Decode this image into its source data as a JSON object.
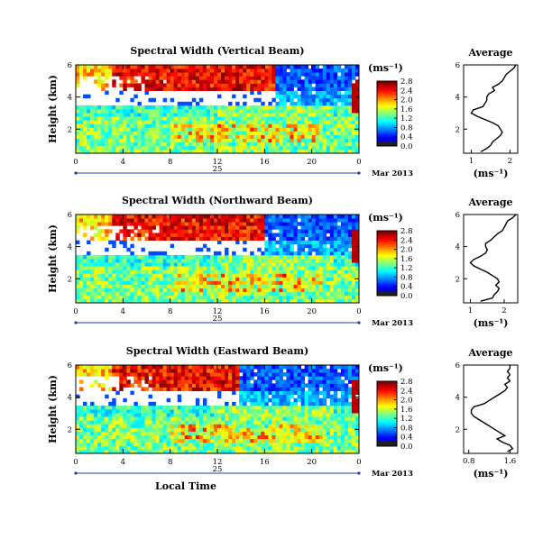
{
  "chart_data": [
    {
      "type": "heatmap",
      "title": "Spectral Width (Vertical Beam)",
      "ylabel": "Height (km)",
      "xticks": [
        "0",
        "4",
        "8",
        "12",
        "16",
        "20",
        "0"
      ],
      "yticks": [
        "2",
        "4",
        "6"
      ],
      "date_day": "25",
      "date_label": "Mar 2013",
      "colorbar_unit": "(ms⁻¹)",
      "colorbar_ticks": [
        "0.0",
        "0.4",
        "0.8",
        "1.2",
        "1.6",
        "2.0",
        "2.4",
        "2.8"
      ],
      "colorbar_range": [
        0,
        2.8
      ],
      "xlim": [
        0,
        24
      ],
      "ylim": [
        0.5,
        6
      ],
      "upper_level_km": 4.5,
      "upper_level_end_h": 17,
      "average": {
        "title": "Average",
        "xlabel": "(ms⁻¹)",
        "xticks": [
          "1",
          "2"
        ],
        "xticks_v": [
          1,
          2
        ],
        "xlim": [
          0.8,
          2.2
        ],
        "yticks": [
          "2",
          "4",
          "6"
        ],
        "ylim": [
          0.5,
          6
        ],
        "height": [
          0.6,
          0.8,
          1.0,
          1.2,
          1.4,
          1.6,
          1.8,
          2.0,
          2.2,
          2.4,
          2.6,
          2.8,
          3.0,
          3.2,
          3.4,
          3.6,
          3.8,
          4.0,
          4.2,
          4.4,
          4.6,
          4.8,
          5.0,
          5.2,
          5.4,
          5.6,
          5.8,
          6.0
        ],
        "value": [
          1.25,
          1.4,
          1.5,
          1.55,
          1.65,
          1.75,
          1.8,
          1.75,
          1.7,
          1.55,
          1.35,
          1.15,
          1.0,
          1.05,
          1.3,
          1.35,
          1.4,
          1.4,
          1.45,
          1.6,
          1.55,
          1.7,
          1.8,
          1.85,
          1.9,
          2.0,
          2.1,
          2.15
        ]
      }
    },
    {
      "type": "heatmap",
      "title": "Spectral Width (Northward Beam)",
      "ylabel": "Height (km)",
      "xticks": [
        "0",
        "4",
        "8",
        "12",
        "16",
        "20",
        "0"
      ],
      "yticks": [
        "2",
        "4",
        "6"
      ],
      "date_day": "25",
      "date_label": "Mar 2013",
      "colorbar_unit": "(ms⁻¹)",
      "colorbar_ticks": [
        "0.0",
        "0.4",
        "0.8",
        "1.2",
        "1.6",
        "2.0",
        "2.4",
        "2.8"
      ],
      "colorbar_range": [
        0,
        2.8
      ],
      "xlim": [
        0,
        24
      ],
      "ylim": [
        0.5,
        6
      ],
      "upper_level_km": 4.5,
      "upper_level_end_h": 16,
      "average": {
        "title": "Average",
        "xlabel": "(ms⁻¹)",
        "xticks": [
          "1",
          "2"
        ],
        "xticks_v": [
          1,
          2
        ],
        "xlim": [
          0.8,
          2.4
        ],
        "yticks": [
          "2",
          "4",
          "6"
        ],
        "ylim": [
          0.5,
          6
        ],
        "height": [
          0.6,
          0.8,
          1.0,
          1.2,
          1.4,
          1.6,
          1.8,
          2.0,
          2.2,
          2.4,
          2.6,
          2.8,
          3.0,
          3.2,
          3.4,
          3.6,
          3.8,
          4.0,
          4.2,
          4.4,
          4.6,
          4.8,
          5.0,
          5.2,
          5.4,
          5.6,
          5.8,
          6.0
        ],
        "value": [
          1.3,
          1.65,
          1.7,
          1.8,
          1.85,
          1.75,
          1.85,
          1.8,
          1.65,
          1.5,
          1.3,
          1.1,
          1.0,
          1.1,
          1.3,
          1.45,
          1.5,
          1.45,
          1.45,
          1.6,
          1.7,
          1.8,
          1.95,
          2.0,
          2.05,
          2.1,
          2.25,
          2.35
        ]
      }
    },
    {
      "type": "heatmap",
      "title": "Spectral Width (Eastward Beam)",
      "ylabel": "Height (km)",
      "xticks": [
        "0",
        "4",
        "8",
        "12",
        "16",
        "20",
        "0"
      ],
      "yticks": [
        "2",
        "4",
        "6"
      ],
      "date_day": "25",
      "date_label": "Mar 2013",
      "xlabel": "Local Time",
      "colorbar_unit": "(ms⁻¹)",
      "colorbar_ticks": [
        "0.0",
        "0.4",
        "0.8",
        "1.2",
        "1.6",
        "2.0",
        "2.4",
        "2.8"
      ],
      "colorbar_range": [
        0,
        2.8
      ],
      "xlim": [
        0,
        24
      ],
      "ylim": [
        0.5,
        6
      ],
      "upper_level_km": 4.5,
      "upper_level_end_h": 14,
      "average": {
        "title": "Average",
        "xlabel": "(ms⁻¹)",
        "xticks": [
          "0.8",
          "1.6"
        ],
        "xticks_v": [
          0.8,
          1.6
        ],
        "xlim": [
          0.7,
          1.75
        ],
        "yticks": [
          "2",
          "4",
          "6"
        ],
        "ylim": [
          0.5,
          6
        ],
        "height": [
          0.6,
          0.8,
          1.0,
          1.2,
          1.4,
          1.6,
          1.8,
          2.0,
          2.2,
          2.4,
          2.6,
          2.8,
          3.0,
          3.2,
          3.4,
          3.6,
          3.8,
          4.0,
          4.2,
          4.4,
          4.6,
          4.8,
          5.0,
          5.2,
          5.4,
          5.6,
          5.8,
          6.0
        ],
        "value": [
          1.55,
          1.65,
          1.6,
          1.45,
          1.35,
          1.5,
          1.4,
          1.3,
          1.2,
          1.1,
          1.0,
          0.9,
          0.85,
          0.85,
          0.9,
          1.1,
          1.2,
          1.3,
          1.4,
          1.5,
          1.55,
          1.5,
          1.6,
          1.55,
          1.6,
          1.55,
          1.6,
          1.6
        ]
      }
    }
  ]
}
